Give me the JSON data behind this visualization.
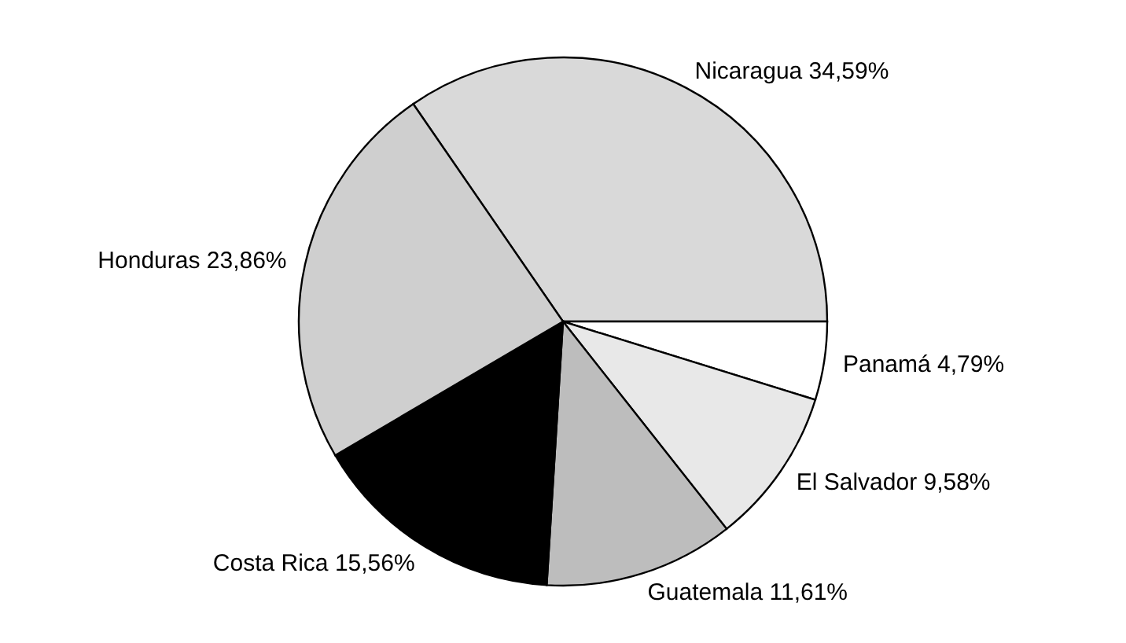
{
  "chart_data": {
    "type": "pie",
    "categories": [
      "Nicaragua",
      "Panamá",
      "El Salvador",
      "Guatemala",
      "Costa Rica",
      "Honduras"
    ],
    "values": [
      34.59,
      4.79,
      9.58,
      11.61,
      15.56,
      23.86
    ],
    "value_labels": [
      "34,59%",
      "4,79%",
      "9,58%",
      "11,61%",
      "15,56%",
      "23,86%"
    ],
    "colors": [
      "#d9d9d9",
      "#ffffff",
      "#e8e8e8",
      "#bdbdbd",
      "#000000",
      "#cfcfcf"
    ]
  }
}
